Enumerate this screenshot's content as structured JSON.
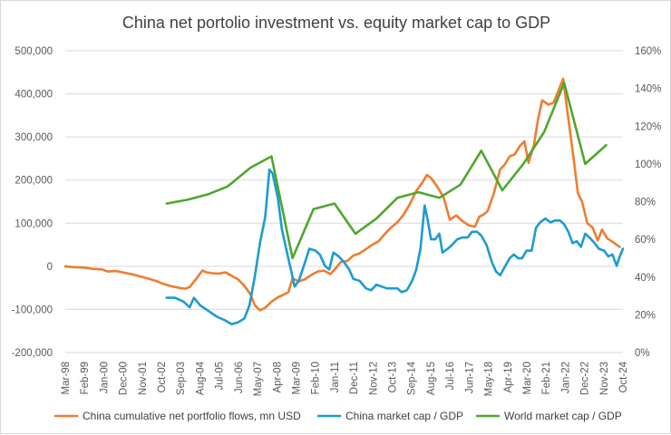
{
  "chart_data": {
    "type": "line",
    "title": "China net portolio investment vs. equity market cap to GDP",
    "x_tick_labels": [
      "Mar-98",
      "Feb-99",
      "Jan-00",
      "Dec-00",
      "Nov-01",
      "Oct-02",
      "Sep-03",
      "Aug-04",
      "Jul-05",
      "Jun-06",
      "May-07",
      "Apr-08",
      "Mar-09",
      "Feb-10",
      "Jan-11",
      "Dec-11",
      "Nov-12",
      "Oct-13",
      "Sep-14",
      "Aug-15",
      "Jul-16",
      "Jun-17",
      "May-18",
      "Apr-19",
      "Mar-20",
      "Feb-21",
      "Jan-22",
      "Dec-22",
      "Nov-23",
      "Oct-24"
    ],
    "x_range": [
      1998.17,
      2024.75
    ],
    "y_left": {
      "min": -200000,
      "max": 500000,
      "step": 100000,
      "tick_labels": [
        "-200,000",
        "-100,000",
        "0",
        "100,000",
        "200,000",
        "300,000",
        "400,000",
        "500,000"
      ]
    },
    "y_right": {
      "min": 0,
      "max": 160,
      "step": 20,
      "tick_labels": [
        "0%",
        "20%",
        "40%",
        "60%",
        "80%",
        "100%",
        "120%",
        "140%",
        "160%"
      ]
    },
    "grid": "horizontal",
    "legend_position": "bottom",
    "series": [
      {
        "name": "China cumulative net portfolio flows, mn USD",
        "axis": "left",
        "color": "#ed7d31",
        "points": [
          [
            1998.17,
            0
          ],
          [
            1998.6,
            -2000
          ],
          [
            1999.1,
            -3000
          ],
          [
            1999.5,
            -6000
          ],
          [
            1999.9,
            -7000
          ],
          [
            2000.2,
            -12000
          ],
          [
            2000.6,
            -11000
          ],
          [
            2000.9,
            -14000
          ],
          [
            2001.3,
            -18000
          ],
          [
            2001.7,
            -23000
          ],
          [
            2002.1,
            -28000
          ],
          [
            2002.5,
            -34000
          ],
          [
            2002.8,
            -40000
          ],
          [
            2003.2,
            -46000
          ],
          [
            2003.6,
            -50000
          ],
          [
            2003.9,
            -52000
          ],
          [
            2004.1,
            -48000
          ],
          [
            2004.4,
            -30000
          ],
          [
            2004.7,
            -10000
          ],
          [
            2004.9,
            -14000
          ],
          [
            2005.2,
            -16000
          ],
          [
            2005.5,
            -17000
          ],
          [
            2005.8,
            -14000
          ],
          [
            2006.1,
            -22000
          ],
          [
            2006.4,
            -30000
          ],
          [
            2006.7,
            -45000
          ],
          [
            2007.0,
            -65000
          ],
          [
            2007.2,
            -90000
          ],
          [
            2007.45,
            -102000
          ],
          [
            2007.7,
            -96000
          ],
          [
            2008.0,
            -82000
          ],
          [
            2008.3,
            -72000
          ],
          [
            2008.6,
            -65000
          ],
          [
            2008.8,
            -60000
          ],
          [
            2009.0,
            -28000
          ],
          [
            2009.3,
            -35000
          ],
          [
            2009.6,
            -30000
          ],
          [
            2009.9,
            -20000
          ],
          [
            2010.2,
            -12000
          ],
          [
            2010.5,
            -10000
          ],
          [
            2010.8,
            -18000
          ],
          [
            2011.0,
            -8000
          ],
          [
            2011.3,
            10000
          ],
          [
            2011.6,
            12000
          ],
          [
            2011.9,
            25000
          ],
          [
            2012.2,
            30000
          ],
          [
            2012.5,
            40000
          ],
          [
            2012.8,
            50000
          ],
          [
            2013.1,
            58000
          ],
          [
            2013.4,
            75000
          ],
          [
            2013.7,
            90000
          ],
          [
            2014.0,
            102000
          ],
          [
            2014.3,
            120000
          ],
          [
            2014.6,
            145000
          ],
          [
            2014.9,
            175000
          ],
          [
            2015.2,
            195000
          ],
          [
            2015.4,
            212000
          ],
          [
            2015.6,
            205000
          ],
          [
            2015.9,
            185000
          ],
          [
            2016.2,
            160000
          ],
          [
            2016.5,
            108000
          ],
          [
            2016.8,
            118000
          ],
          [
            2017.1,
            105000
          ],
          [
            2017.4,
            95000
          ],
          [
            2017.7,
            92000
          ],
          [
            2017.9,
            115000
          ],
          [
            2018.1,
            120000
          ],
          [
            2018.3,
            128000
          ],
          [
            2018.6,
            170000
          ],
          [
            2018.9,
            225000
          ],
          [
            2019.1,
            235000
          ],
          [
            2019.35,
            255000
          ],
          [
            2019.6,
            260000
          ],
          [
            2019.85,
            280000
          ],
          [
            2020.05,
            290000
          ],
          [
            2020.25,
            240000
          ],
          [
            2020.5,
            280000
          ],
          [
            2020.7,
            340000
          ],
          [
            2020.9,
            385000
          ],
          [
            2021.2,
            375000
          ],
          [
            2021.45,
            380000
          ],
          [
            2021.7,
            410000
          ],
          [
            2021.9,
            435000
          ],
          [
            2022.1,
            360000
          ],
          [
            2022.4,
            250000
          ],
          [
            2022.6,
            170000
          ],
          [
            2022.8,
            150000
          ],
          [
            2023.05,
            100000
          ],
          [
            2023.3,
            90000
          ],
          [
            2023.55,
            60000
          ],
          [
            2023.75,
            85000
          ],
          [
            2024.0,
            65000
          ],
          [
            2024.3,
            55000
          ],
          [
            2024.6,
            45000
          ]
        ]
      },
      {
        "name": "China market cap / GDP",
        "axis": "right",
        "color": "#1d9bd1",
        "points": [
          [
            2003.0,
            29
          ],
          [
            2003.4,
            29
          ],
          [
            2003.8,
            27
          ],
          [
            2004.1,
            24
          ],
          [
            2004.3,
            29
          ],
          [
            2004.6,
            25
          ],
          [
            2005.0,
            22
          ],
          [
            2005.4,
            19
          ],
          [
            2005.8,
            17
          ],
          [
            2006.1,
            15
          ],
          [
            2006.4,
            16
          ],
          [
            2006.7,
            18
          ],
          [
            2006.95,
            25
          ],
          [
            2007.2,
            40
          ],
          [
            2007.45,
            58
          ],
          [
            2007.7,
            72
          ],
          [
            2007.9,
            97
          ],
          [
            2008.05,
            95
          ],
          [
            2008.3,
            82
          ],
          [
            2008.5,
            65
          ],
          [
            2008.7,
            55
          ],
          [
            2008.9,
            45
          ],
          [
            2009.1,
            35
          ],
          [
            2009.3,
            38
          ],
          [
            2009.6,
            48
          ],
          [
            2009.8,
            55
          ],
          [
            2010.1,
            54
          ],
          [
            2010.3,
            52
          ],
          [
            2010.55,
            46
          ],
          [
            2010.75,
            44
          ],
          [
            2010.95,
            53
          ],
          [
            2011.2,
            51
          ],
          [
            2011.45,
            48
          ],
          [
            2011.7,
            44
          ],
          [
            2011.9,
            39
          ],
          [
            2012.2,
            38
          ],
          [
            2012.5,
            34
          ],
          [
            2012.75,
            33
          ],
          [
            2013.0,
            36
          ],
          [
            2013.25,
            35
          ],
          [
            2013.5,
            34
          ],
          [
            2013.8,
            34
          ],
          [
            2014.0,
            34
          ],
          [
            2014.2,
            32
          ],
          [
            2014.45,
            33
          ],
          [
            2014.7,
            38
          ],
          [
            2014.9,
            44
          ],
          [
            2015.1,
            55
          ],
          [
            2015.3,
            78
          ],
          [
            2015.45,
            70
          ],
          [
            2015.6,
            60
          ],
          [
            2015.8,
            60
          ],
          [
            2016.0,
            63
          ],
          [
            2016.15,
            53
          ],
          [
            2016.4,
            55
          ],
          [
            2016.6,
            57
          ],
          [
            2016.85,
            60
          ],
          [
            2017.1,
            61
          ],
          [
            2017.35,
            61
          ],
          [
            2017.55,
            64
          ],
          [
            2017.8,
            64
          ],
          [
            2018.0,
            62
          ],
          [
            2018.25,
            57
          ],
          [
            2018.5,
            48
          ],
          [
            2018.7,
            43
          ],
          [
            2018.9,
            41
          ],
          [
            2019.1,
            45
          ],
          [
            2019.35,
            50
          ],
          [
            2019.55,
            52
          ],
          [
            2019.75,
            50
          ],
          [
            2019.95,
            50
          ],
          [
            2020.15,
            54
          ],
          [
            2020.4,
            54
          ],
          [
            2020.6,
            66
          ],
          [
            2020.8,
            69
          ],
          [
            2021.05,
            71
          ],
          [
            2021.3,
            69
          ],
          [
            2021.5,
            70
          ],
          [
            2021.75,
            70
          ],
          [
            2021.95,
            68
          ],
          [
            2022.15,
            64
          ],
          [
            2022.35,
            58
          ],
          [
            2022.55,
            59
          ],
          [
            2022.75,
            56
          ],
          [
            2022.95,
            63
          ],
          [
            2023.15,
            61
          ],
          [
            2023.4,
            58
          ],
          [
            2023.6,
            55
          ],
          [
            2023.85,
            54
          ],
          [
            2024.05,
            51
          ],
          [
            2024.25,
            52
          ],
          [
            2024.45,
            46
          ],
          [
            2024.6,
            51
          ],
          [
            2024.75,
            55
          ]
        ]
      },
      {
        "name": "World market cap / GDP",
        "axis": "right",
        "color": "#4ea72e",
        "points": [
          [
            2003.0,
            79
          ],
          [
            2004.0,
            81
          ],
          [
            2005.0,
            84
          ],
          [
            2005.9,
            88
          ],
          [
            2007.0,
            98
          ],
          [
            2008.0,
            104
          ],
          [
            2009.0,
            50
          ],
          [
            2010.0,
            76
          ],
          [
            2011.0,
            79
          ],
          [
            2012.0,
            63
          ],
          [
            2013.0,
            71
          ],
          [
            2014.0,
            82
          ],
          [
            2015.0,
            85
          ],
          [
            2016.0,
            82
          ],
          [
            2017.0,
            89
          ],
          [
            2018.0,
            107
          ],
          [
            2019.0,
            86
          ],
          [
            2020.0,
            100
          ],
          [
            2021.0,
            117
          ],
          [
            2021.95,
            143
          ],
          [
            2022.95,
            100
          ],
          [
            2023.95,
            110
          ]
        ]
      }
    ]
  }
}
